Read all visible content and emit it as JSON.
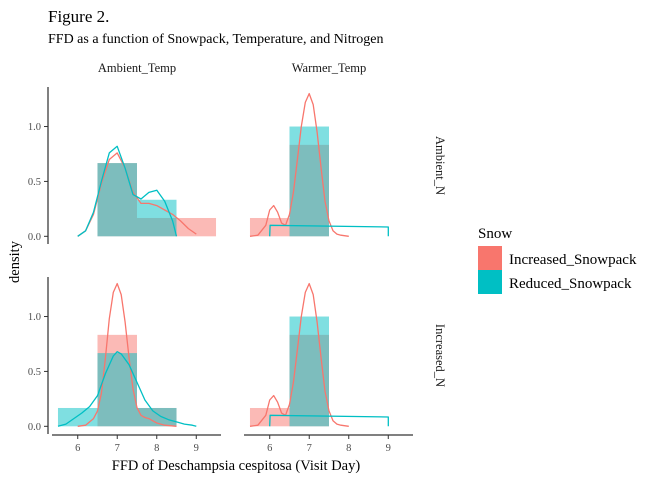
{
  "figure": {
    "title": "Figure 2.",
    "subtitle": "FFD as a function of Snowpack, Temperature, and Nitrogen"
  },
  "colors": {
    "Increased_Snowpack": "#F8766D",
    "Reduced_Snowpack": "#00BFC4"
  },
  "chart_data": {
    "type": "area",
    "chart_kind": "histogram-density-facet",
    "xlabel": "FFD of Deschampsia cespitosa (Visit Day)",
    "ylabel": "density",
    "xlim": [
      5.45,
      9.55
    ],
    "ylim": [
      -0.07,
      1.36
    ],
    "xticks": [
      "6",
      "7",
      "8",
      "9"
    ],
    "xtick_values": [
      6,
      7,
      8,
      9
    ],
    "yticks": [
      "0.0",
      "0.5",
      "1.0"
    ],
    "ytick_values": [
      0,
      0.5,
      1.0
    ],
    "facet_cols": [
      "Ambient_Temp",
      "Warmer_Temp"
    ],
    "facet_rows": [
      "Ambient_N",
      "Increased_N"
    ],
    "legend": {
      "title": "Snow",
      "position": "right",
      "entries": [
        "Increased_Snowpack",
        "Reduced_Snowpack"
      ]
    },
    "grid": false,
    "panels": [
      {
        "col": "Ambient_Temp",
        "row": "Ambient_N",
        "hist": {
          "Increased_Snowpack": [
            [
              6.5,
              7.5,
              0.667
            ],
            [
              7.5,
              8.5,
              0.167
            ],
            [
              8.5,
              9.5,
              0.167
            ]
          ],
          "Reduced_Snowpack": [
            [
              6.5,
              7.5,
              0.667
            ],
            [
              7.5,
              8.5,
              0.333
            ]
          ]
        },
        "density": {
          "Increased_Snowpack": {
            "x": [
              6.0,
              6.2,
              6.4,
              6.6,
              6.8,
              7.0,
              7.2,
              7.4,
              7.6,
              7.8,
              8.0,
              8.2,
              8.4,
              8.6,
              8.8,
              9.0
            ],
            "y": [
              0.0,
              0.05,
              0.2,
              0.48,
              0.7,
              0.76,
              0.62,
              0.4,
              0.3,
              0.3,
              0.28,
              0.24,
              0.2,
              0.14,
              0.07,
              0.02
            ]
          },
          "Reduced_Snowpack": {
            "x": [
              6.0,
              6.2,
              6.4,
              6.6,
              6.8,
              7.0,
              7.2,
              7.4,
              7.6,
              7.8,
              8.0,
              8.2,
              8.4,
              8.5
            ],
            "y": [
              0.0,
              0.05,
              0.22,
              0.5,
              0.76,
              0.82,
              0.62,
              0.38,
              0.34,
              0.4,
              0.42,
              0.32,
              0.14,
              0.0
            ]
          }
        }
      },
      {
        "col": "Warmer_Temp",
        "row": "Ambient_N",
        "hist": {
          "Increased_Snowpack": [
            [
              5.5,
              6.5,
              0.167
            ],
            [
              6.5,
              7.5,
              0.833
            ]
          ],
          "Reduced_Snowpack": [
            [
              6.5,
              7.5,
              1.0
            ]
          ]
        },
        "density": {
          "Increased_Snowpack": {
            "x": [
              5.5,
              5.7,
              5.9,
              6.0,
              6.1,
              6.2,
              6.3,
              6.4,
              6.5,
              6.6,
              6.7,
              6.8,
              6.9,
              7.0,
              7.1,
              7.2,
              7.3,
              7.4,
              7.5,
              7.6,
              7.7,
              7.8,
              8.0
            ],
            "y": [
              0.0,
              0.01,
              0.1,
              0.24,
              0.28,
              0.22,
              0.12,
              0.1,
              0.2,
              0.4,
              0.7,
              1.0,
              1.22,
              1.3,
              1.2,
              0.95,
              0.62,
              0.32,
              0.14,
              0.05,
              0.02,
              0.01,
              0.0
            ]
          },
          "Reduced_Snowpack": {
            "x": [
              6.0,
              6.01,
              9.0,
              9.0
            ],
            "y": [
              0.0,
              0.1,
              0.085,
              0.0
            ]
          }
        }
      },
      {
        "col": "Ambient_Temp",
        "row": "Increased_N",
        "hist": {
          "Increased_Snowpack": [
            [
              6.5,
              7.5,
              0.833
            ],
            [
              7.5,
              8.5,
              0.167
            ]
          ],
          "Reduced_Snowpack": [
            [
              5.5,
              6.5,
              0.167
            ],
            [
              6.5,
              7.5,
              0.667
            ],
            [
              7.5,
              8.5,
              0.167
            ]
          ]
        },
        "density": {
          "Increased_Snowpack": {
            "x": [
              6.0,
              6.2,
              6.4,
              6.5,
              6.6,
              6.7,
              6.8,
              6.9,
              7.0,
              7.1,
              7.2,
              7.3,
              7.4,
              7.5,
              7.6,
              7.7,
              7.8,
              7.9,
              8.0,
              8.2,
              8.5
            ],
            "y": [
              0.0,
              0.01,
              0.07,
              0.14,
              0.3,
              0.62,
              0.98,
              1.22,
              1.3,
              1.2,
              0.95,
              0.62,
              0.34,
              0.17,
              0.1,
              0.08,
              0.07,
              0.05,
              0.03,
              0.01,
              0.0
            ]
          },
          "Reduced_Snowpack": {
            "x": [
              5.5,
              5.7,
              5.9,
              6.1,
              6.3,
              6.5,
              6.7,
              6.9,
              7.0,
              7.1,
              7.3,
              7.5,
              7.7,
              7.9,
              8.1,
              8.3,
              8.5,
              8.7,
              8.9,
              9.0
            ],
            "y": [
              0.0,
              0.02,
              0.07,
              0.12,
              0.18,
              0.28,
              0.48,
              0.64,
              0.68,
              0.66,
              0.56,
              0.4,
              0.24,
              0.14,
              0.09,
              0.06,
              0.04,
              0.02,
              0.01,
              0.0
            ]
          }
        }
      },
      {
        "col": "Warmer_Temp",
        "row": "Increased_N",
        "hist": {
          "Increased_Snowpack": [
            [
              5.5,
              6.5,
              0.167
            ],
            [
              6.5,
              7.5,
              0.833
            ]
          ],
          "Reduced_Snowpack": [
            [
              6.5,
              7.5,
              1.0
            ]
          ]
        },
        "density": {
          "Increased_Snowpack": {
            "x": [
              5.5,
              5.7,
              5.9,
              6.0,
              6.1,
              6.2,
              6.3,
              6.4,
              6.5,
              6.6,
              6.7,
              6.8,
              6.9,
              7.0,
              7.1,
              7.2,
              7.3,
              7.4,
              7.5,
              7.6,
              7.7,
              7.8,
              8.0
            ],
            "y": [
              0.0,
              0.01,
              0.1,
              0.24,
              0.28,
              0.22,
              0.12,
              0.1,
              0.2,
              0.4,
              0.7,
              1.0,
              1.22,
              1.3,
              1.2,
              0.95,
              0.62,
              0.32,
              0.14,
              0.05,
              0.02,
              0.01,
              0.0
            ]
          },
          "Reduced_Snowpack": {
            "x": [
              6.0,
              6.01,
              9.0,
              9.0
            ],
            "y": [
              0.0,
              0.1,
              0.085,
              0.0
            ]
          }
        }
      }
    ]
  }
}
